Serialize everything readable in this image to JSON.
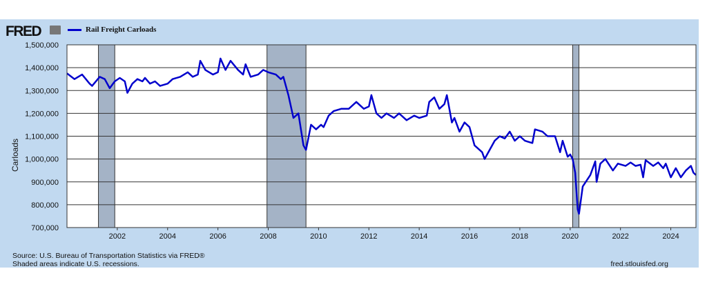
{
  "brand": {
    "logo": "FRED",
    "logo_icon": "chart-icon"
  },
  "chart_data": {
    "type": "line",
    "title": "Rail Freight Carloads",
    "ylabel": "Carloads",
    "xlabel": "",
    "xlim": [
      2000,
      2025
    ],
    "ylim": [
      700000,
      1500000
    ],
    "grid": true,
    "legend": "top-left",
    "ytick_labels": [
      "700,000",
      "800,000",
      "900,000",
      "1,000,000",
      "1,100,000",
      "1,200,000",
      "1,300,000",
      "1,400,000",
      "1,500,000"
    ],
    "ytick_values": [
      700000,
      800000,
      900000,
      1000000,
      1100000,
      1200000,
      1300000,
      1400000,
      1500000
    ],
    "xtick_labels": [
      "2002",
      "2004",
      "2006",
      "2008",
      "2010",
      "2012",
      "2014",
      "2016",
      "2018",
      "2020",
      "2022",
      "2024"
    ],
    "xtick_values": [
      2002,
      2004,
      2006,
      2008,
      2010,
      2012,
      2014,
      2016,
      2018,
      2020,
      2022,
      2024
    ],
    "recessions": [
      [
        2001.25,
        2001.9
      ],
      [
        2007.95,
        2009.5
      ],
      [
        2020.1,
        2020.35
      ]
    ],
    "series": [
      {
        "name": "Rail Freight Carloads",
        "color": "#0000cc",
        "x": [
          2000,
          2000.3,
          2000.6,
          2000.9,
          2001.0,
          2001.3,
          2001.5,
          2001.7,
          2001.9,
          2002.1,
          2002.3,
          2002.4,
          2002.6,
          2002.8,
          2003.0,
          2003.1,
          2003.3,
          2003.5,
          2003.7,
          2004.0,
          2004.2,
          2004.5,
          2004.8,
          2005.0,
          2005.2,
          2005.3,
          2005.5,
          2005.8,
          2006.0,
          2006.1,
          2006.3,
          2006.5,
          2006.8,
          2007.0,
          2007.1,
          2007.3,
          2007.6,
          2007.8,
          2008.0,
          2008.3,
          2008.5,
          2008.6,
          2008.8,
          2009.0,
          2009.2,
          2009.4,
          2009.5,
          2009.7,
          2009.9,
          2010.1,
          2010.2,
          2010.4,
          2010.6,
          2010.9,
          2011.2,
          2011.5,
          2011.8,
          2012.0,
          2012.1,
          2012.3,
          2012.5,
          2012.7,
          2013.0,
          2013.2,
          2013.5,
          2013.8,
          2014.0,
          2014.3,
          2014.4,
          2014.6,
          2014.8,
          2015.0,
          2015.1,
          2015.3,
          2015.4,
          2015.6,
          2015.8,
          2016.0,
          2016.2,
          2016.5,
          2016.6,
          2016.8,
          2017.0,
          2017.2,
          2017.4,
          2017.6,
          2017.8,
          2018.0,
          2018.2,
          2018.5,
          2018.6,
          2018.9,
          2019.1,
          2019.4,
          2019.6,
          2019.7,
          2019.9,
          2020.0,
          2020.1,
          2020.2,
          2020.3,
          2020.35,
          2020.5,
          2020.8,
          2021.0,
          2021.05,
          2021.2,
          2021.4,
          2021.7,
          2021.9,
          2022.2,
          2022.4,
          2022.6,
          2022.8,
          2022.9,
          2023.0,
          2023.3,
          2023.5,
          2023.7,
          2023.8,
          2024.0,
          2024.2,
          2024.4,
          2024.6,
          2024.8,
          2024.9,
          2025.0
        ],
        "values_thousands": [
          1375,
          1350,
          1370,
          1330,
          1320,
          1360,
          1350,
          1310,
          1340,
          1355,
          1340,
          1290,
          1330,
          1350,
          1340,
          1355,
          1330,
          1340,
          1320,
          1330,
          1350,
          1360,
          1380,
          1360,
          1370,
          1430,
          1390,
          1370,
          1380,
          1440,
          1390,
          1430,
          1390,
          1370,
          1415,
          1360,
          1370,
          1390,
          1380,
          1370,
          1350,
          1360,
          1280,
          1180,
          1200,
          1060,
          1040,
          1150,
          1130,
          1150,
          1140,
          1190,
          1210,
          1220,
          1220,
          1250,
          1220,
          1230,
          1280,
          1200,
          1180,
          1200,
          1180,
          1200,
          1170,
          1190,
          1180,
          1190,
          1250,
          1270,
          1220,
          1240,
          1280,
          1160,
          1180,
          1120,
          1160,
          1140,
          1060,
          1030,
          1000,
          1040,
          1080,
          1100,
          1090,
          1120,
          1080,
          1100,
          1080,
          1070,
          1130,
          1120,
          1100,
          1100,
          1030,
          1080,
          1010,
          1020,
          1000,
          940,
          780,
          760,
          880,
          930,
          990,
          900,
          980,
          1000,
          950,
          980,
          970,
          985,
          970,
          975,
          920,
          995,
          970,
          985,
          960,
          980,
          920,
          960,
          920,
          950,
          970,
          940,
          930
        ]
      }
    ]
  },
  "footer": {
    "source": "Source: U.S. Bureau of Transportation Statistics via FRED®",
    "note": "Shaded areas indicate U.S. recessions.",
    "site": "fred.stlouisfed.org"
  }
}
